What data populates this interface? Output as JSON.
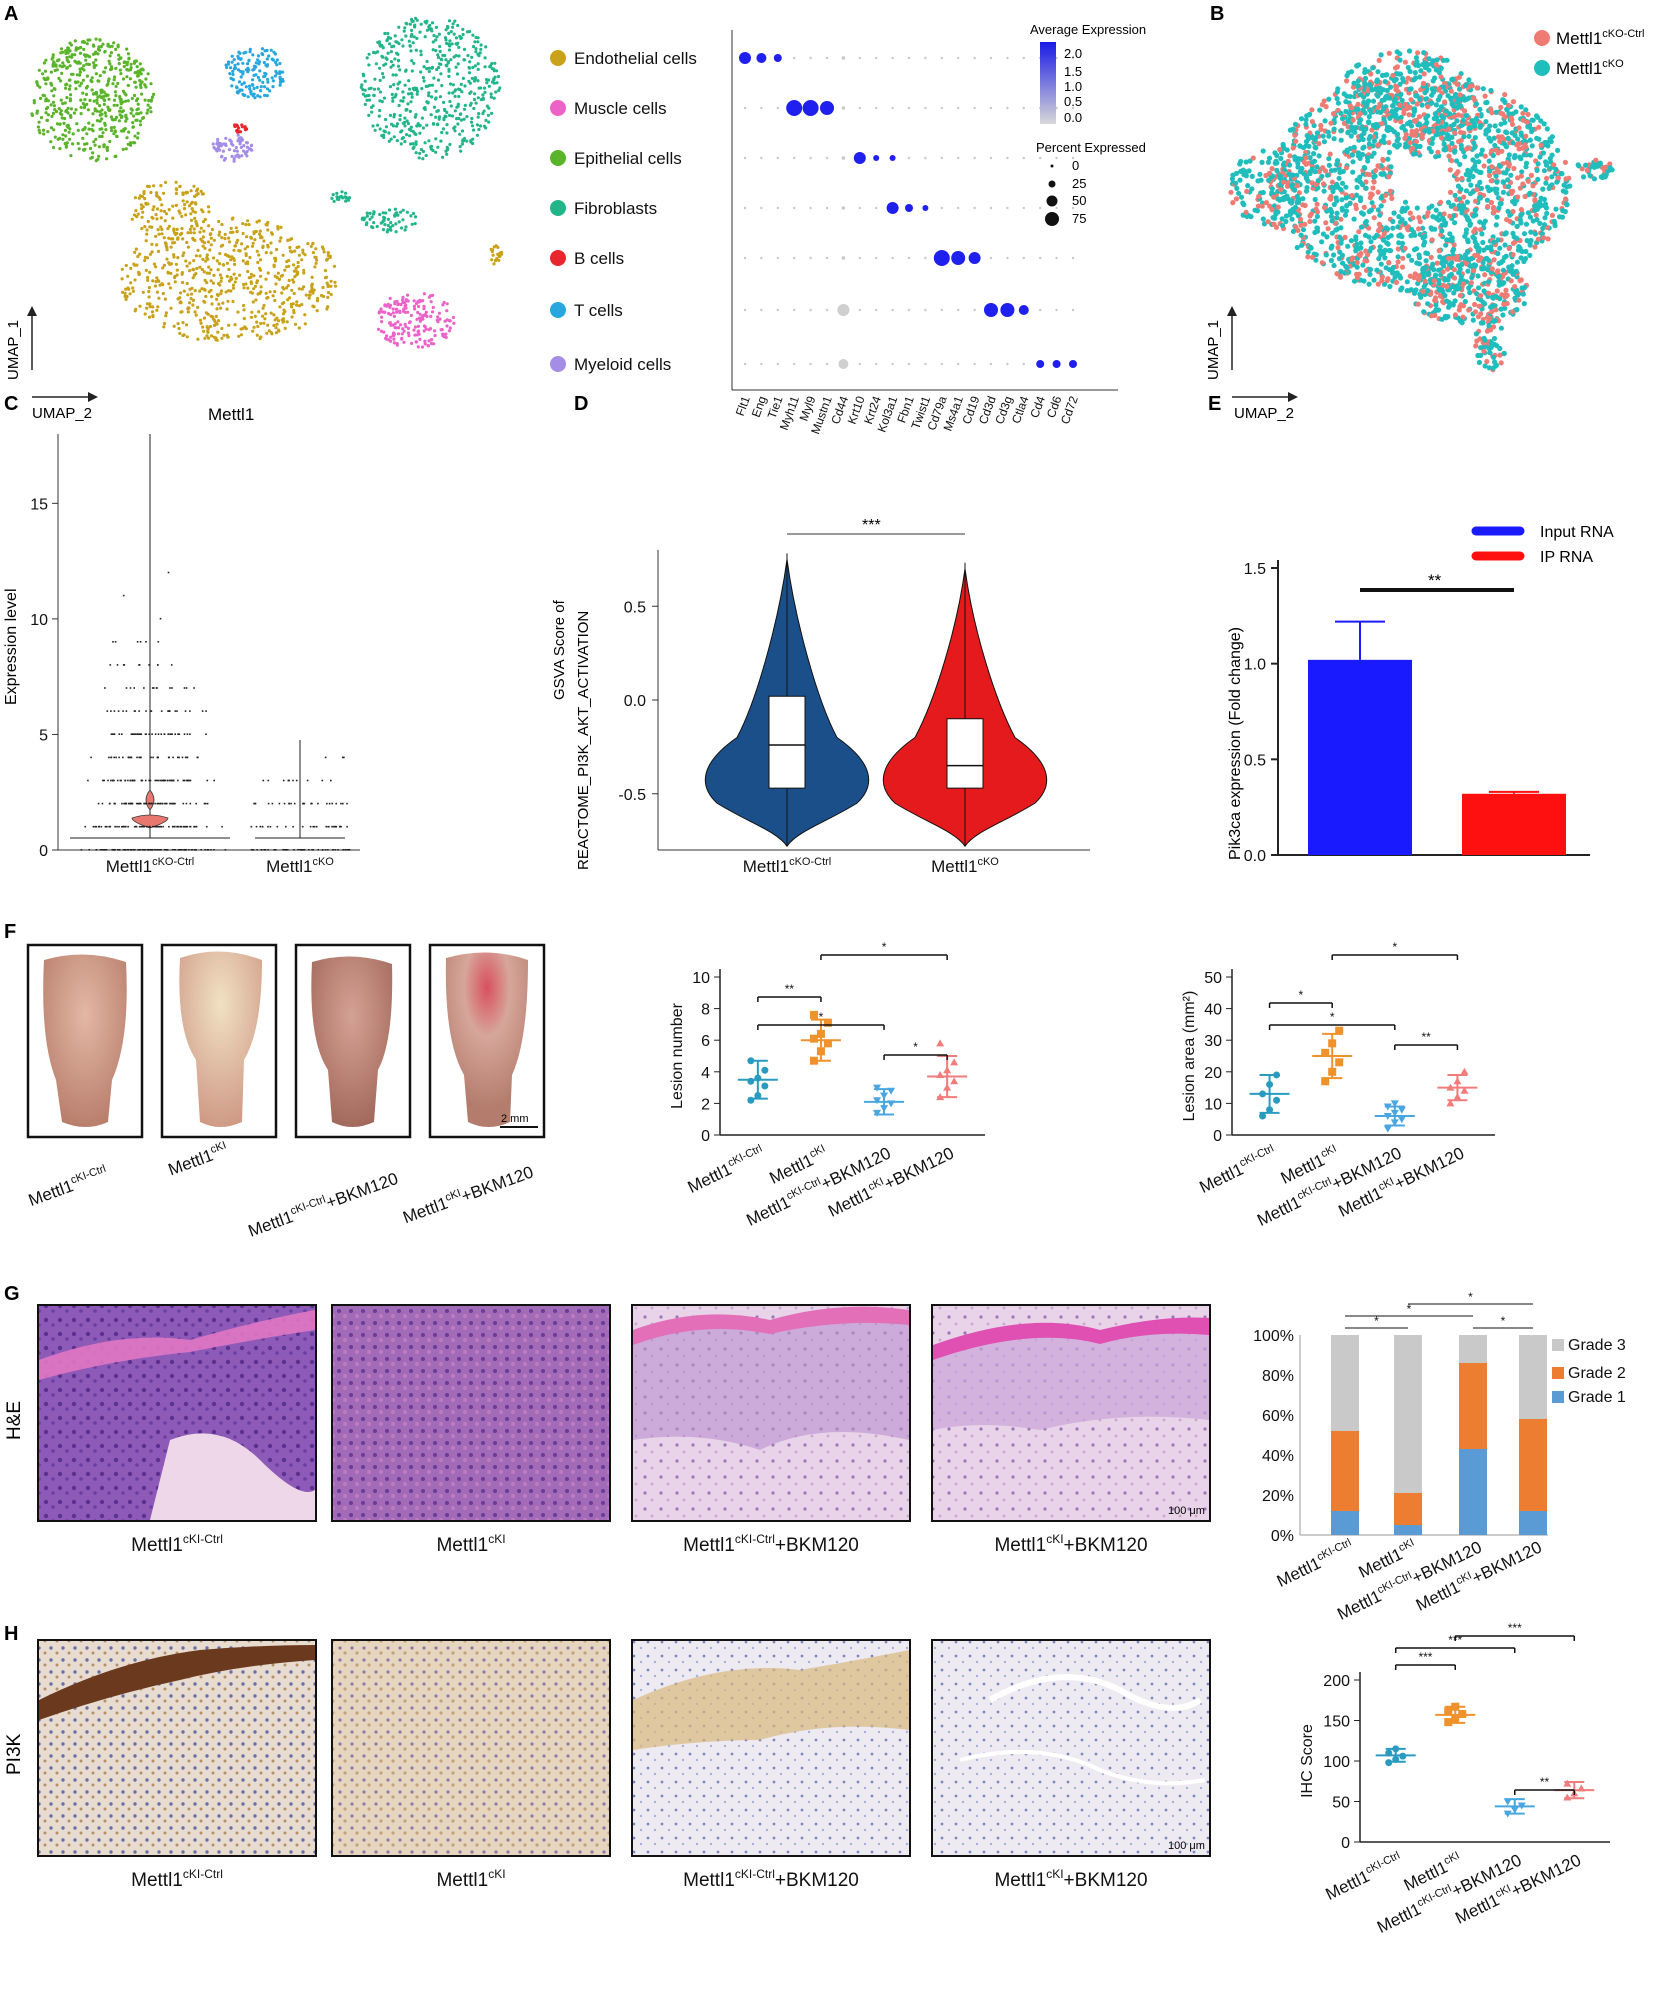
{
  "panel_letters": [
    "A",
    "B",
    "C",
    "D",
    "E",
    "F",
    "G",
    "H"
  ],
  "umap": {
    "x_label": "UMAP_2",
    "y_label": "UMAP_1"
  },
  "panel_a": {
    "cell_types": [
      {
        "label": "Endothelial cells",
        "color": "#c9a21a"
      },
      {
        "label": "Muscle cells",
        "color": "#ec62c8"
      },
      {
        "label": "Epithelial cells",
        "color": "#5ab42a"
      },
      {
        "label": "Fibroblasts",
        "color": "#22b58a"
      },
      {
        "label": "B cells",
        "color": "#e8262d"
      },
      {
        "label": "T cells",
        "color": "#27a7de"
      },
      {
        "label": "Myeloid cells",
        "color": "#a48de6"
      }
    ],
    "genes": [
      "Flt1",
      "Eng",
      "Tie1",
      "Myh11",
      "Myl9",
      "Mustn1",
      "Cd44",
      "Krt10",
      "Krt24",
      "Kol3a1",
      "Fbn1",
      "Twist1",
      "Cd79a",
      "Ms4a1",
      "Cd19",
      "Cd3d",
      "Cd3g",
      "Ctla4",
      "Cd4",
      "Cd6",
      "Cd72"
    ],
    "legend_expression_title": "Average Expression",
    "legend_expression_ticks": [
      "2.0",
      "1.5",
      "1.0",
      "0.5",
      "0.0"
    ],
    "legend_percent_title": "Percent Expressed",
    "legend_percent_ticks": [
      "0",
      "25",
      "50",
      "75"
    ]
  },
  "panel_b": {
    "legend": [
      {
        "base": "Mettl1",
        "sup": "cKO-Ctrl",
        "color": "#ee7c75"
      },
      {
        "base": "Mettl1",
        "sup": "cKO",
        "color": "#20bdbd"
      }
    ]
  },
  "chart_data": [
    {
      "panel": "C",
      "type": "violin",
      "title": "Mettl1",
      "ylabel": "Expression level",
      "yticks": [
        "0",
        "5",
        "10",
        "15"
      ],
      "ylim": [
        0,
        18
      ],
      "groups": [
        {
          "base": "Mettl1",
          "sup": "cKO-Ctrl"
        },
        {
          "base": "Mettl1",
          "sup": "cKO"
        }
      ]
    },
    {
      "panel": "D",
      "type": "violin",
      "ylabel_line1": "GSVA Score of",
      "ylabel_line2": "REACTOME_PI3K_AKT_ACTIVATION",
      "yticks": [
        "-0.5",
        "0.0",
        "0.5"
      ],
      "ylim": [
        -0.8,
        0.8
      ],
      "groups": [
        {
          "base": "Mettl1",
          "sup": "cKO-Ctrl",
          "color": "#1b4f8a",
          "median": -0.24,
          "q1": -0.47,
          "q3": 0.02
        },
        {
          "base": "Mettl1",
          "sup": "cKO",
          "color": "#e41a1c",
          "median": -0.35,
          "q1": -0.47,
          "q3": -0.1
        }
      ],
      "significance": "***"
    },
    {
      "panel": "E",
      "type": "bar",
      "ylabel": "Pik3ca expression (Fold change)",
      "yticks": [
        "0.0",
        "0.5",
        "1.0",
        "1.5"
      ],
      "ylim": [
        0,
        1.5
      ],
      "series": [
        {
          "name": "Input RNA",
          "value": 1.02,
          "err": 0.2,
          "color": "#1a1aff"
        },
        {
          "name": "IP RNA",
          "value": 0.32,
          "err": 0.01,
          "color": "#ff1010"
        }
      ],
      "significance": "**"
    },
    {
      "panel": "F",
      "type": "scatter",
      "ylabel": "Lesion number",
      "yticks": [
        "0",
        "2",
        "4",
        "6",
        "8",
        "10"
      ],
      "ylim": [
        0,
        10
      ],
      "groups": [
        {
          "base": "Mettl1",
          "sup": "cKI-Ctrl",
          "suffix": "",
          "color": "#2a9bc0",
          "mean": 3.5,
          "sd": 1.2,
          "points": [
            2.2,
            2.5,
            3.1,
            3.4,
            3.6,
            4.1,
            4.7
          ]
        },
        {
          "base": "Mettl1",
          "sup": "cKI",
          "suffix": "",
          "color": "#f0922b",
          "mean": 6.0,
          "sd": 1.3,
          "points": [
            4.7,
            5.3,
            5.8,
            6.1,
            6.4,
            7.1,
            7.6
          ]
        },
        {
          "base": "Mettl1",
          "sup": "cKI-Ctrl",
          "suffix": "+BKM120",
          "color": "#4aa6e0",
          "mean": 2.1,
          "sd": 0.8,
          "points": [
            1.4,
            1.7,
            2.0,
            2.2,
            2.5,
            2.8,
            3.0
          ]
        },
        {
          "base": "Mettl1",
          "sup": "cKI",
          "suffix": "+BKM120",
          "color": "#f07c7c",
          "mean": 3.7,
          "sd": 1.3,
          "points": [
            2.4,
            3.0,
            3.4,
            3.8,
            4.1,
            4.6,
            5.8
          ]
        }
      ],
      "comparisons": [
        {
          "from": 0,
          "to": 1,
          "label": "**"
        },
        {
          "from": 0,
          "to": 2,
          "label": "*"
        },
        {
          "from": 1,
          "to": 3,
          "label": "*"
        },
        {
          "from": 2,
          "to": 3,
          "label": "*"
        }
      ]
    },
    {
      "panel": "F",
      "type": "scatter",
      "ylabel": "Lesion area (mm²)",
      "yticks": [
        "0",
        "10",
        "20",
        "30",
        "40",
        "50"
      ],
      "ylim": [
        0,
        50
      ],
      "groups": [
        {
          "base": "Mettl1",
          "sup": "cKI-Ctrl",
          "suffix": "",
          "color": "#2a9bc0",
          "mean": 13,
          "sd": 6,
          "points": [
            6,
            8,
            11,
            13,
            16,
            19
          ]
        },
        {
          "base": "Mettl1",
          "sup": "cKI",
          "suffix": "",
          "color": "#f0922b",
          "mean": 25,
          "sd": 7,
          "points": [
            17,
            20,
            23,
            26,
            29,
            33
          ]
        },
        {
          "base": "Mettl1",
          "sup": "cKI-Ctrl",
          "suffix": "+BKM120",
          "color": "#4aa6e0",
          "mean": 6,
          "sd": 3,
          "points": [
            2,
            4,
            5,
            6,
            7,
            8,
            9,
            10
          ]
        },
        {
          "base": "Mettl1",
          "sup": "cKI",
          "suffix": "+BKM120",
          "color": "#f07c7c",
          "mean": 15,
          "sd": 4,
          "points": [
            10,
            12,
            14,
            15,
            17,
            20
          ]
        }
      ],
      "comparisons": [
        {
          "from": 0,
          "to": 1,
          "label": "*"
        },
        {
          "from": 0,
          "to": 2,
          "label": "*"
        },
        {
          "from": 1,
          "to": 3,
          "label": "*"
        },
        {
          "from": 2,
          "to": 3,
          "label": "**"
        }
      ]
    },
    {
      "panel": "G",
      "type": "bar",
      "stacked": true,
      "yticks": [
        "0%",
        "20%",
        "40%",
        "60%",
        "80%",
        "100%"
      ],
      "ylim": [
        0,
        100
      ],
      "categories": [
        {
          "base": "Mettl1",
          "sup": "cKI-Ctrl",
          "suffix": ""
        },
        {
          "base": "Mettl1",
          "sup": "cKI",
          "suffix": ""
        },
        {
          "base": "Mettl1",
          "sup": "cKI-Ctrl",
          "suffix": "+BKM120"
        },
        {
          "base": "Mettl1",
          "sup": "cKI",
          "suffix": "+BKM120"
        }
      ],
      "series": [
        {
          "name": "Grade 1",
          "color": "#5b9bd5",
          "values": [
            12,
            5,
            43,
            12
          ]
        },
        {
          "name": "Grade 2",
          "color": "#ed7d31",
          "values": [
            40,
            16,
            43,
            46
          ]
        },
        {
          "name": "Grade 3",
          "color": "#c9c9c9",
          "values": [
            48,
            79,
            14,
            42
          ]
        }
      ],
      "comparisons": [
        {
          "from": 0,
          "to": 1,
          "label": "*"
        },
        {
          "from": 0,
          "to": 2,
          "label": "*"
        },
        {
          "from": 1,
          "to": 3,
          "label": "*"
        },
        {
          "from": 2,
          "to": 3,
          "label": "*"
        }
      ]
    },
    {
      "panel": "H",
      "type": "scatter",
      "ylabel": "IHC Score",
      "yticks": [
        "0",
        "50",
        "100",
        "150",
        "200"
      ],
      "ylim": [
        0,
        200
      ],
      "groups": [
        {
          "base": "Mettl1",
          "sup": "cKI-Ctrl",
          "suffix": "",
          "color": "#2a9bc0",
          "mean": 107,
          "sd": 8,
          "points": [
            98,
            102,
            106,
            110,
            115
          ]
        },
        {
          "base": "Mettl1",
          "sup": "cKI",
          "suffix": "",
          "color": "#f0922b",
          "mean": 157,
          "sd": 10,
          "points": [
            148,
            153,
            158,
            162,
            167
          ]
        },
        {
          "base": "Mettl1",
          "sup": "cKI-Ctrl",
          "suffix": "+BKM120",
          "color": "#4aa6e0",
          "mean": 44,
          "sd": 9,
          "points": [
            35,
            40,
            45,
            50
          ]
        },
        {
          "base": "Mettl1",
          "sup": "cKI",
          "suffix": "+BKM120",
          "color": "#f07c7c",
          "mean": 64,
          "sd": 10,
          "points": [
            55,
            60,
            66,
            72
          ]
        }
      ],
      "comparisons": [
        {
          "from": 0,
          "to": 1,
          "label": "***"
        },
        {
          "from": 0,
          "to": 2,
          "label": "***"
        },
        {
          "from": 1,
          "to": 3,
          "label": "***"
        },
        {
          "from": 2,
          "to": 3,
          "label": "**"
        }
      ]
    }
  ],
  "images": {
    "f_scale": "2 mm",
    "g_row_label": "H&E",
    "h_row_label": "PI3K",
    "micro_scale": "100 μm",
    "captions": [
      {
        "base": "Mettl1",
        "sup": "cKI-Ctrl",
        "suffix": ""
      },
      {
        "base": "Mettl1",
        "sup": "cKI",
        "suffix": ""
      },
      {
        "base": "Mettl1",
        "sup": "cKI-Ctrl",
        "suffix": "+BKM120"
      },
      {
        "base": "Mettl1",
        "sup": "cKI",
        "suffix": "+BKM120"
      }
    ]
  }
}
